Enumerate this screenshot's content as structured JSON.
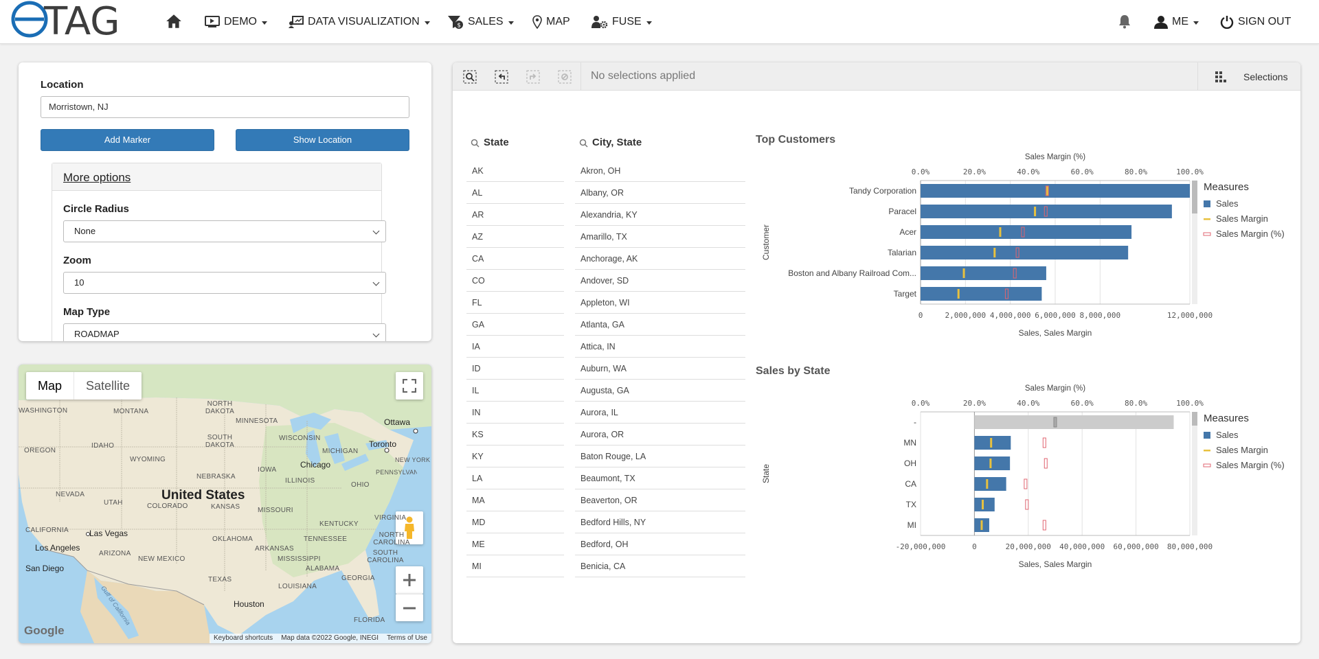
{
  "nav": {
    "logo_text": "eTAG",
    "items": [
      {
        "label": "DEMO",
        "icon": "demo-icon"
      },
      {
        "label": "DATA VISUALIZATION",
        "icon": "data-viz-icon"
      },
      {
        "label": "SALES",
        "icon": "sales-icon"
      },
      {
        "label": "MAP",
        "icon": "map-pin-icon"
      },
      {
        "label": "FUSE",
        "icon": "fuse-icon"
      }
    ],
    "me_label": "ME",
    "signout_label": "SIGN OUT"
  },
  "location_panel": {
    "location_label": "Location",
    "location_value": "Morristown, NJ",
    "add_marker_label": "Add Marker",
    "show_location_label": "Show Location",
    "more_options_label": "More options",
    "circle_radius_label": "Circle Radius",
    "circle_radius_value": "None",
    "zoom_label": "Zoom",
    "zoom_value": "10",
    "map_type_label": "Map Type",
    "map_type_value": "ROADMAP"
  },
  "map": {
    "type_map": "Map",
    "type_satellite": "Satellite",
    "country_label": "United States",
    "states": [
      "WASHINGTON",
      "MONTANA",
      "NORTH DAKOTA",
      "MINNESOTA",
      "OREGON",
      "IDAHO",
      "SOUTH DAKOTA",
      "WISCONSIN",
      "MICHIGAN",
      "WYOMING",
      "IOWA",
      "NEW YORK",
      "NEBRASKA",
      "ILLINOIS",
      "OHIO",
      "PENNSYLVANIA",
      "NEVADA",
      "UTAH",
      "COLORADO",
      "KANSAS",
      "MISSOURI",
      "KENTUCKY",
      "VIRGINIA",
      "CALIFORNIA",
      "OKLAHOMA",
      "TENNESSEE",
      "NORTH CAROLINA",
      "ARIZONA",
      "NEW MEXICO",
      "ARKANSAS",
      "SOUTH CAROLINA",
      "MISSISSIPPI",
      "ALABAMA",
      "GEORGIA",
      "TEXAS",
      "LOUISIANA",
      "FLORIDA"
    ],
    "cities": [
      "Ottawa",
      "Toronto",
      "Chicago",
      "Las Vegas",
      "Los Angeles",
      "San Diego",
      "Houston"
    ],
    "gulf_label": "Gulf of California",
    "google_label": "Google",
    "footer_keyboard": "Keyboard shortcuts",
    "footer_data": "Map data ©2022 Google, INEGI",
    "footer_terms": "Terms of Use"
  },
  "qlik": {
    "no_selections": "No selections applied",
    "selections_label": "Selections",
    "state_list_title": "State",
    "states": [
      "AK",
      "AL",
      "AR",
      "AZ",
      "CA",
      "CO",
      "FL",
      "GA",
      "IA",
      "ID",
      "IL",
      "IN",
      "KS",
      "KY",
      "LA",
      "MA",
      "MD",
      "ME",
      "MI"
    ],
    "city_list_title": "City, State",
    "cities": [
      "Akron, OH",
      "Albany, OR",
      "Alexandria, KY",
      "Amarillo, TX",
      "Anchorage, AK",
      "Andover, SD",
      "Appleton, WI",
      "Atlanta, GA",
      "Attica, IN",
      "Auburn, WA",
      "Augusta, GA",
      "Aurora, IL",
      "Aurora, OR",
      "Baton Rouge, LA",
      "Beaumont, TX",
      "Beaverton, OR",
      "Bedford Hills, NY",
      "Bedford, OH",
      "Benicia, CA"
    ]
  },
  "chart_data": [
    {
      "type": "bar",
      "title": "Top Customers",
      "top_axis_label": "Sales Margin (%)",
      "xlabel": "Sales, Sales Margin",
      "ylabel": "Customer",
      "top_ticks": [
        "0.0%",
        "20.0%",
        "40.0%",
        "60.0%",
        "80.0%",
        "100.0%"
      ],
      "bottom_ticks": [
        "0",
        "2,000,000",
        "4,000,000",
        "6,000,000",
        "8,000,000",
        "12,000,000"
      ],
      "bottom_tick_values": [
        0,
        2000000,
        4000000,
        6000000,
        8000000,
        12000000
      ],
      "xlim": [
        0,
        12000000
      ],
      "categories": [
        "Tandy Corporation",
        "Paracel",
        "Acer",
        "Talarian",
        "Boston and Albany Railroad Com...",
        "Target"
      ],
      "series": [
        {
          "name": "Sales",
          "values": [
            12000000,
            11200000,
            9400000,
            9250000,
            5600000,
            5400000
          ]
        },
        {
          "name": "Sales Margin",
          "values": [
            5650000,
            5100000,
            3550000,
            3300000,
            1930000,
            1690000
          ]
        },
        {
          "name": "Sales Margin (%)",
          "values": [
            47.0,
            46.5,
            38.0,
            36.0,
            35.0,
            32.0
          ]
        }
      ],
      "legend_title": "Measures",
      "legend": [
        "Sales",
        "Sales Margin",
        "Sales Margin (%)"
      ],
      "legend_position": "right"
    },
    {
      "type": "bar",
      "title": "Sales by State",
      "top_axis_label": "Sales Margin (%)",
      "xlabel": "Sales, Sales Margin",
      "ylabel": "State",
      "top_ticks": [
        "0.0%",
        "20.0%",
        "40.0%",
        "60.0%",
        "80.0%",
        "100.0%"
      ],
      "bottom_ticks": [
        "-20,000,000",
        "0",
        "20,000,000",
        "40,000,000",
        "60,000,000",
        "80,000,000"
      ],
      "bottom_tick_values": [
        -20000000,
        0,
        20000000,
        40000000,
        60000000,
        80000000
      ],
      "xlim": [
        -20000000,
        80000000
      ],
      "categories": [
        "-",
        "MN",
        "OH",
        "CA",
        "TX",
        "MI"
      ],
      "series": [
        {
          "name": "Sales",
          "values": [
            74000000,
            13500000,
            13200000,
            11800000,
            7500000,
            5500000
          ]
        },
        {
          "name": "Sales Margin",
          "values": [
            30000000,
            6200000,
            6000000,
            4700000,
            3100000,
            2700000
          ]
        },
        {
          "name": "Sales Margin (%)",
          "values": [
            50.0,
            46.0,
            46.5,
            39.0,
            39.5,
            46.0
          ]
        }
      ],
      "legend_title": "Measures",
      "legend": [
        "Sales",
        "Sales Margin",
        "Sales Margin (%)"
      ],
      "legend_position": "right",
      "colors": {
        "sales": "#4477aa",
        "margin": "#e8c13e",
        "margin_pct": "#e06470",
        "null_bar": "#cccccc"
      }
    }
  ]
}
